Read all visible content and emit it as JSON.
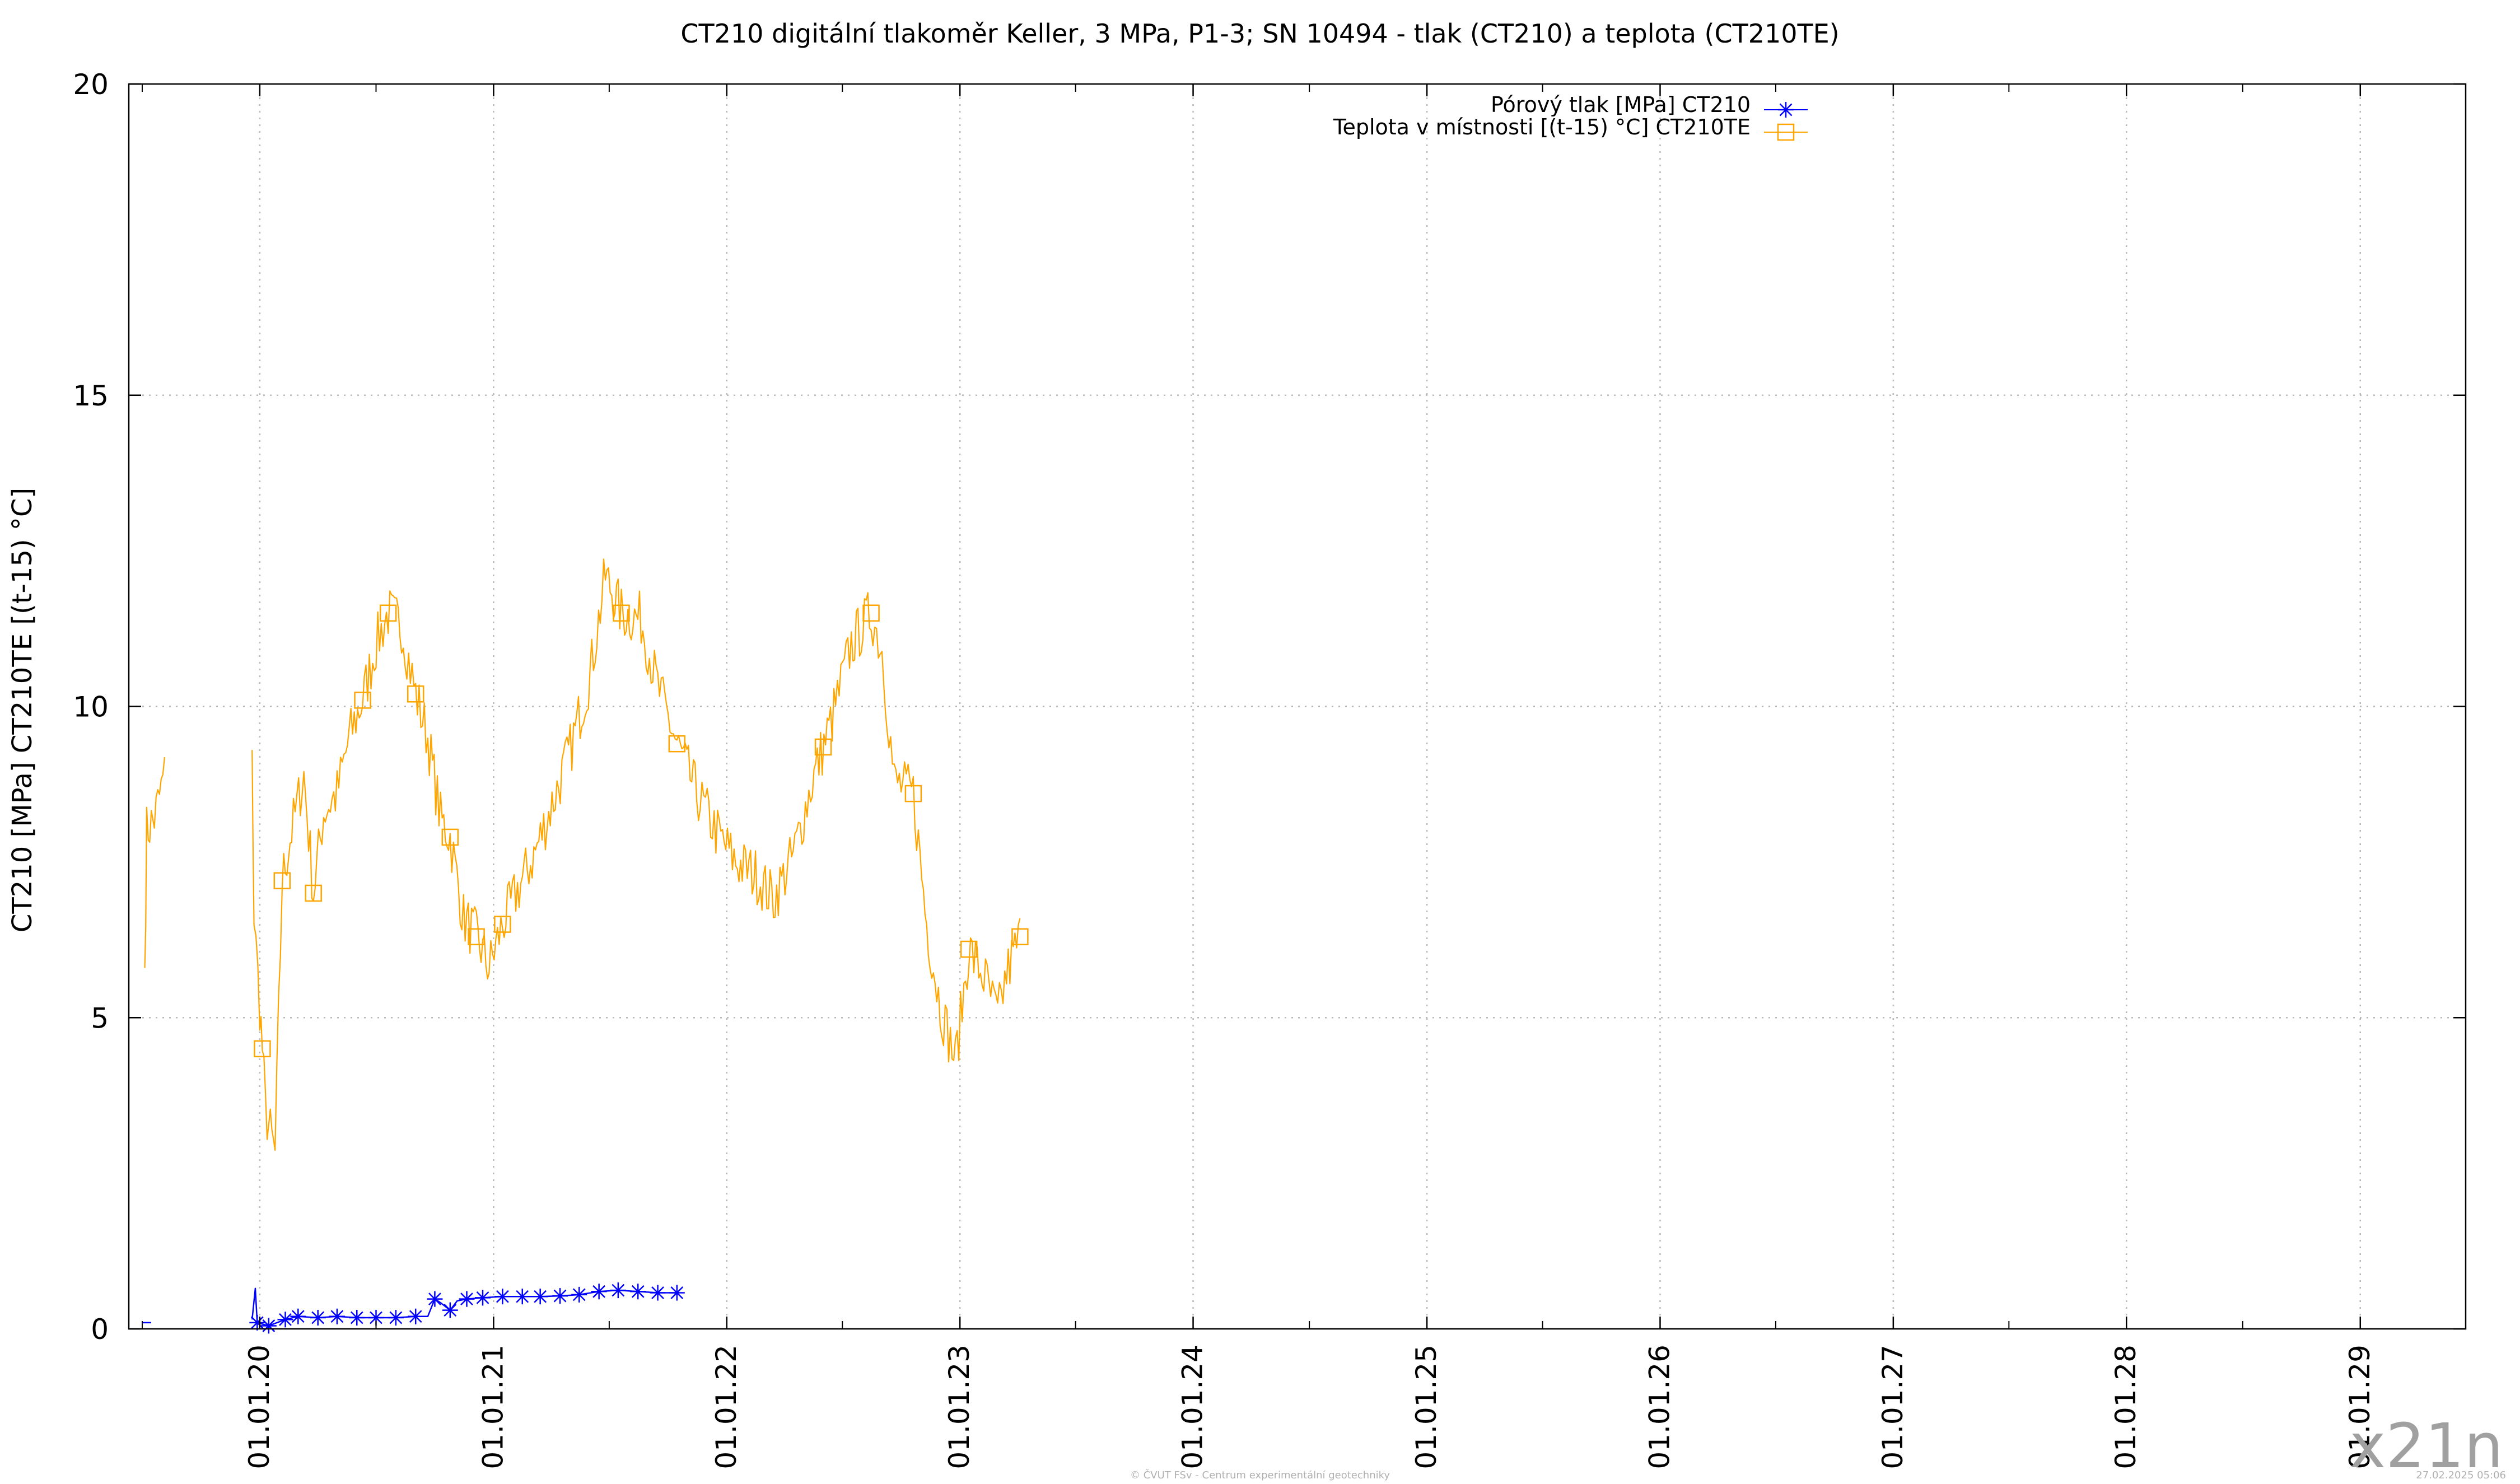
{
  "chart_data": {
    "type": "line",
    "title": "CT210 digitální tlakoměr Keller, 3 MPa, P1-3; SN 10494 - tlak (CT210) a teplota (CT210TE)",
    "ylabel": "CT210 [MPa] CT210TE [(t-15) °C]",
    "xlabel": "",
    "ylim": [
      0,
      20
    ],
    "y_ticks": [
      0,
      5,
      10,
      15,
      20
    ],
    "x_ticks": [
      "01.01.20",
      "01.01.21",
      "01.01.22",
      "01.01.23",
      "01.01.24",
      "01.01.25",
      "01.01.26",
      "01.01.27",
      "01.01.28",
      "01.01.29"
    ],
    "x_range": [
      "2019-06-10",
      "2029-06-15"
    ],
    "grid": true,
    "legend_position": "top-right",
    "series": [
      {
        "name": "Pórový tlak [MPa] CT210",
        "color": "#0000ff",
        "marker": "asterisk",
        "points": [
          [
            "2019-07-01",
            0.1
          ],
          [
            "2019-07-15",
            0.1
          ],
          [
            "2019-12-20",
            0.15
          ],
          [
            "2019-12-25",
            0.65
          ],
          [
            "2019-12-28",
            0.1
          ],
          [
            "2020-01-15",
            0.05
          ],
          [
            "2020-02-10",
            0.15
          ],
          [
            "2020-03-01",
            0.2
          ],
          [
            "2020-04-01",
            0.18
          ],
          [
            "2020-05-01",
            0.2
          ],
          [
            "2020-06-01",
            0.18
          ],
          [
            "2020-07-01",
            0.18
          ],
          [
            "2020-08-01",
            0.18
          ],
          [
            "2020-09-01",
            0.2
          ],
          [
            "2020-09-20",
            0.2
          ],
          [
            "2020-10-01",
            0.48
          ],
          [
            "2020-10-10",
            0.42
          ],
          [
            "2020-10-25",
            0.3
          ],
          [
            "2020-11-05",
            0.45
          ],
          [
            "2020-11-20",
            0.48
          ],
          [
            "2020-12-15",
            0.5
          ],
          [
            "2021-01-15",
            0.52
          ],
          [
            "2021-02-15",
            0.52
          ],
          [
            "2021-03-15",
            0.52
          ],
          [
            "2021-04-15",
            0.53
          ],
          [
            "2021-05-15",
            0.55
          ],
          [
            "2021-06-15",
            0.6
          ],
          [
            "2021-07-15",
            0.62
          ],
          [
            "2021-08-15",
            0.6
          ],
          [
            "2021-09-15",
            0.58
          ],
          [
            "2021-10-15",
            0.58
          ]
        ],
        "marker_dates": [
          "2019-12-28",
          "2020-01-15",
          "2020-02-10",
          "2020-03-01",
          "2020-04-01",
          "2020-05-01",
          "2020-06-01",
          "2020-07-01",
          "2020-08-01",
          "2020-09-01",
          "2020-10-01",
          "2020-10-25",
          "2020-11-20",
          "2020-12-15",
          "2021-01-15",
          "2021-02-15",
          "2021-03-15",
          "2021-04-15",
          "2021-05-15",
          "2021-06-15",
          "2021-07-15",
          "2021-08-15",
          "2021-09-15",
          "2021-10-15"
        ]
      },
      {
        "name": "Teplota v místnosti [(t-15) °C] CT210TE",
        "color": "#ffa500",
        "marker": "square",
        "points": [
          [
            "2019-07-05",
            5.8
          ],
          [
            "2019-07-08",
            8.0
          ],
          [
            "2019-07-20",
            8.2
          ],
          [
            "2019-08-05",
            8.9
          ],
          [
            "2019-12-20",
            9.3
          ],
          [
            "2019-12-23",
            6.6
          ],
          [
            "2020-01-01",
            5.2
          ],
          [
            "2020-01-05",
            4.5
          ],
          [
            "2020-01-10",
            3.5
          ],
          [
            "2020-01-25",
            2.8
          ],
          [
            "2020-02-05",
            7.2
          ],
          [
            "2020-02-20",
            8.0
          ],
          [
            "2020-03-10",
            8.9
          ],
          [
            "2020-03-25",
            7.0
          ],
          [
            "2020-04-10",
            8.3
          ],
          [
            "2020-05-01",
            8.6
          ],
          [
            "2020-05-20",
            9.5
          ],
          [
            "2020-06-10",
            10.1
          ],
          [
            "2020-07-01",
            11.0
          ],
          [
            "2020-07-20",
            11.5
          ],
          [
            "2020-08-10",
            11.3
          ],
          [
            "2020-09-01",
            10.2
          ],
          [
            "2020-09-20",
            9.5
          ],
          [
            "2020-10-10",
            8.2
          ],
          [
            "2020-10-25",
            7.9
          ],
          [
            "2020-11-15",
            6.6
          ],
          [
            "2020-12-05",
            6.3
          ],
          [
            "2020-12-25",
            5.8
          ],
          [
            "2021-01-15",
            6.5
          ],
          [
            "2021-02-10",
            7.1
          ],
          [
            "2021-03-05",
            7.6
          ],
          [
            "2021-04-05",
            8.5
          ],
          [
            "2021-05-01",
            9.3
          ],
          [
            "2021-06-01",
            10.5
          ],
          [
            "2021-06-25",
            12.1
          ],
          [
            "2021-07-20",
            11.5
          ],
          [
            "2021-08-20",
            11.4
          ],
          [
            "2021-09-15",
            10.3
          ],
          [
            "2021-10-15",
            9.4
          ],
          [
            "2021-11-15",
            8.6
          ],
          [
            "2021-12-15",
            8.0
          ],
          [
            "2022-01-15",
            7.5
          ],
          [
            "2022-02-15",
            7.3
          ],
          [
            "2022-03-15",
            6.9
          ],
          [
            "2022-04-15",
            7.6
          ],
          [
            "2022-05-15",
            8.8
          ],
          [
            "2022-06-15",
            9.8
          ],
          [
            "2022-07-15",
            11.0
          ],
          [
            "2022-08-15",
            11.5
          ],
          [
            "2022-09-01",
            10.9
          ],
          [
            "2022-09-20",
            8.8
          ],
          [
            "2022-10-20",
            8.6
          ],
          [
            "2022-11-10",
            6.5
          ],
          [
            "2022-12-01",
            5.2
          ],
          [
            "2022-12-25",
            4.3
          ],
          [
            "2023-01-15",
            6.1
          ],
          [
            "2023-02-10",
            5.6
          ],
          [
            "2023-03-01",
            5.0
          ],
          [
            "2023-03-15",
            5.7
          ],
          [
            "2023-04-05",
            6.3
          ]
        ],
        "marker_dates": [
          "2020-01-05",
          "2020-02-05",
          "2020-03-25",
          "2020-06-10",
          "2020-07-20",
          "2020-09-01",
          "2020-10-25",
          "2020-12-05",
          "2021-01-15",
          "2021-07-20",
          "2021-10-15",
          "2022-06-01",
          "2022-08-15",
          "2022-10-20",
          "2023-01-15",
          "2023-04-05"
        ]
      }
    ]
  },
  "watermark": "x21n",
  "footer": {
    "credit": "© ČVUT FSv - Centrum experimentální geotechniky",
    "timestamp": "27.02.2025 05:06"
  }
}
